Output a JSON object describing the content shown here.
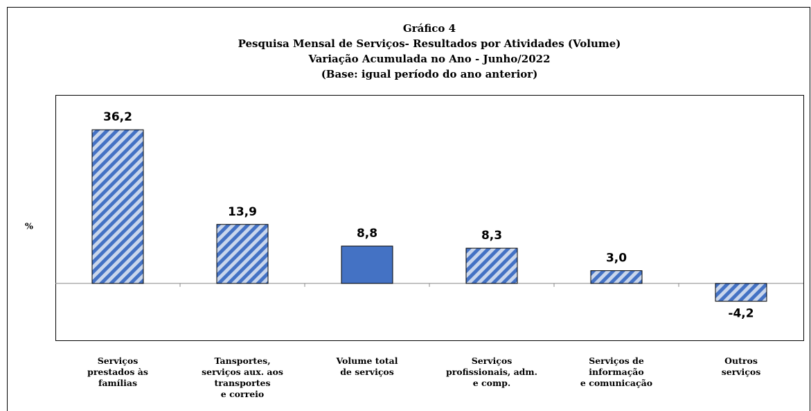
{
  "chart_data": {
    "type": "bar",
    "title": "Gráfico 4",
    "subtitle": [
      "Pesquisa Mensal de Serviços- Resultados por Atividades (Volume)",
      "Variação Acumulada no Ano - Junho/2022",
      "(Base: igual período  do ano anterior)"
    ],
    "y_label": "%",
    "categories": [
      "Serviços\nprestados às\nfamílias",
      "Tansportes,\nserviços aux. aos\ntransportes\ne correio",
      "Volume total\nde serviços",
      "Serviços\nprofissionais, adm.\ne comp.",
      "Serviços de\ninformação\ne comunicação",
      "Outros\nserviços"
    ],
    "values": [
      36.2,
      13.9,
      8.8,
      8.3,
      3.0,
      -4.2
    ],
    "value_labels": [
      "36,2",
      "13,9",
      "8,8",
      "8,3",
      "3,0",
      "-4,2"
    ],
    "hatched": [
      true,
      true,
      false,
      true,
      true,
      true
    ],
    "color": "#4472c4",
    "hatch_color": "#c9d6ec",
    "ylim": [
      -13.4,
      44.4
    ]
  }
}
